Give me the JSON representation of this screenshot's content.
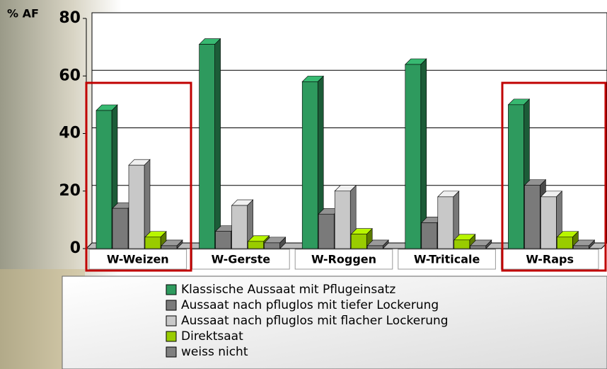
{
  "chart_data": {
    "type": "bar3d",
    "y_label": "% AF",
    "categories": [
      "W-Weizen",
      "W-Gerste",
      "W-Roggen",
      "W-Triticale",
      "W-Raps"
    ],
    "series": [
      {
        "name": "Klassische Aussaat mit Pflugeinsatz",
        "color": "#2e9a5e",
        "values": [
          48,
          71,
          58,
          64,
          50
        ]
      },
      {
        "name": "Aussaat nach pfluglos mit tiefer Lockerung",
        "color": "#7a7a7a",
        "values": [
          14,
          6,
          12,
          9,
          22
        ]
      },
      {
        "name": "Aussaat nach pfluglos mit flacher Lockerung",
        "color": "#c8c8c8",
        "values": [
          29,
          15,
          20,
          18,
          18
        ]
      },
      {
        "name": "Direktsaat",
        "color": "#99cc00",
        "values": [
          4,
          2.5,
          5,
          3,
          4
        ]
      },
      {
        "name": "weiss nicht",
        "color": "#808080",
        "values": [
          1,
          2,
          1,
          1,
          1
        ]
      }
    ],
    "ylim": [
      0,
      80
    ],
    "yticks": [
      0,
      20,
      40,
      60,
      80
    ],
    "grid": true
  }
}
